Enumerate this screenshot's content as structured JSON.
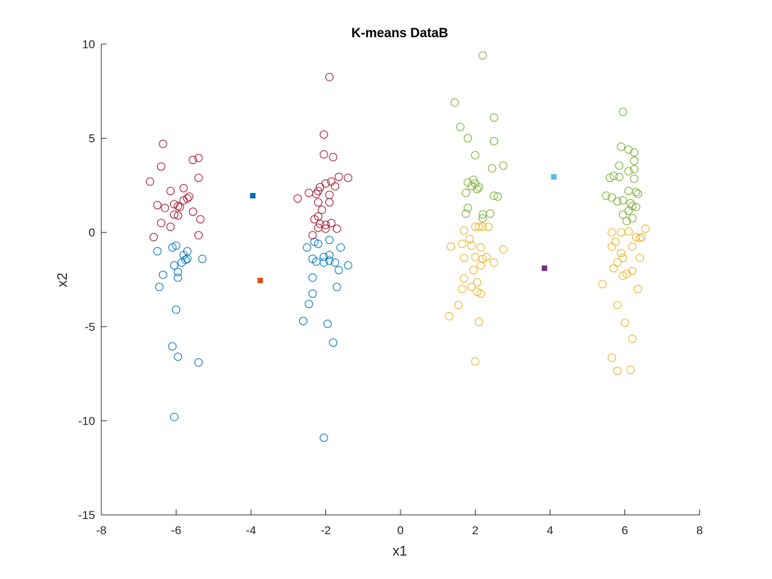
{
  "chart_data": {
    "type": "scatter",
    "title": "K-means DataB",
    "xlabel": "x1",
    "ylabel": "x2",
    "xlim": [
      -8,
      8
    ],
    "ylim": [
      -15,
      10
    ],
    "xticks": [
      -8,
      -6,
      -4,
      -2,
      0,
      2,
      4,
      6,
      8
    ],
    "yticks": [
      -15,
      -10,
      -5,
      0,
      5,
      10
    ],
    "grid": false,
    "box": false,
    "clusters": [
      {
        "color": "#0072bd",
        "marker": "open-circle",
        "points": [
          [
            -6.5,
            -1.0
          ],
          [
            -6.1,
            -0.8
          ],
          [
            -6.0,
            -0.7
          ],
          [
            -5.7,
            -1.0
          ],
          [
            -5.8,
            -1.2
          ],
          [
            -5.75,
            -1.45
          ],
          [
            -5.7,
            -1.4
          ],
          [
            -5.85,
            -1.6
          ],
          [
            -6.05,
            -1.75
          ],
          [
            -5.95,
            -2.1
          ],
          [
            -6.35,
            -2.25
          ],
          [
            -5.95,
            -2.4
          ],
          [
            -5.3,
            -1.4
          ],
          [
            -6.45,
            -2.9
          ],
          [
            -6.0,
            -4.1
          ],
          [
            -6.1,
            -6.05
          ],
          [
            -5.95,
            -6.6
          ],
          [
            -5.4,
            -6.9
          ],
          [
            -6.05,
            -9.8
          ],
          [
            -2.5,
            -0.8
          ],
          [
            -2.3,
            -0.5
          ],
          [
            -2.2,
            -0.6
          ],
          [
            -1.9,
            -0.4
          ],
          [
            -1.6,
            -0.8
          ],
          [
            -2.35,
            -1.4
          ],
          [
            -2.25,
            -1.55
          ],
          [
            -2.05,
            -1.3
          ],
          [
            -2.05,
            -1.6
          ],
          [
            -1.9,
            -1.2
          ],
          [
            -1.9,
            -1.5
          ],
          [
            -1.75,
            -1.6
          ],
          [
            -1.4,
            -1.75
          ],
          [
            -1.65,
            -2.0
          ],
          [
            -2.35,
            -2.4
          ],
          [
            -1.7,
            -2.9
          ],
          [
            -2.35,
            -3.25
          ],
          [
            -2.45,
            -3.8
          ],
          [
            -2.6,
            -4.7
          ],
          [
            -1.95,
            -4.85
          ],
          [
            -1.8,
            -5.85
          ],
          [
            -2.05,
            -10.9
          ]
        ]
      },
      {
        "color": "#a2142f",
        "marker": "open-circle",
        "points": [
          [
            -6.35,
            4.7
          ],
          [
            -6.4,
            3.5
          ],
          [
            -6.7,
            2.7
          ],
          [
            -6.15,
            2.2
          ],
          [
            -5.8,
            2.35
          ],
          [
            -5.65,
            1.9
          ],
          [
            -5.7,
            1.8
          ],
          [
            -6.5,
            1.45
          ],
          [
            -6.3,
            1.3
          ],
          [
            -6.05,
            1.5
          ],
          [
            -5.95,
            1.4
          ],
          [
            -5.9,
            1.35
          ],
          [
            -5.8,
            1.7
          ],
          [
            -6.05,
            0.95
          ],
          [
            -5.95,
            0.9
          ],
          [
            -5.55,
            1.1
          ],
          [
            -5.35,
            0.7
          ],
          [
            -6.4,
            0.5
          ],
          [
            -6.15,
            0.3
          ],
          [
            -6.6,
            -0.25
          ],
          [
            -5.55,
            3.85
          ],
          [
            -5.4,
            3.95
          ],
          [
            -5.4,
            2.9
          ],
          [
            -5.4,
            -0.15
          ],
          [
            -2.05,
            5.2
          ],
          [
            -2.05,
            4.15
          ],
          [
            -1.8,
            4.0
          ],
          [
            -1.9,
            8.25
          ],
          [
            -1.65,
            2.95
          ],
          [
            -1.4,
            2.9
          ],
          [
            -2.0,
            2.6
          ],
          [
            -1.85,
            2.7
          ],
          [
            -2.15,
            2.4
          ],
          [
            -2.2,
            2.2
          ],
          [
            -2.45,
            2.1
          ],
          [
            -2.25,
            2.05
          ],
          [
            -1.9,
            2.0
          ],
          [
            -1.75,
            2.45
          ],
          [
            -2.75,
            1.8
          ],
          [
            -2.2,
            1.6
          ],
          [
            -1.9,
            1.6
          ],
          [
            -2.1,
            1.2
          ],
          [
            -2.2,
            0.85
          ],
          [
            -2.3,
            0.7
          ],
          [
            -2.15,
            0.45
          ],
          [
            -2.0,
            0.4
          ],
          [
            -1.85,
            0.5
          ],
          [
            -2.2,
            0.25
          ],
          [
            -2.0,
            0.2
          ],
          [
            -1.7,
            0.2
          ],
          [
            -2.35,
            -0.15
          ]
        ]
      },
      {
        "color": "#77ac30",
        "marker": "open-circle",
        "points": [
          [
            1.45,
            6.9
          ],
          [
            1.6,
            5.6
          ],
          [
            1.8,
            5.0
          ],
          [
            2.2,
            9.4
          ],
          [
            2.5,
            6.1
          ],
          [
            2.5,
            4.85
          ],
          [
            2.0,
            4.1
          ],
          [
            2.45,
            3.4
          ],
          [
            2.75,
            3.55
          ],
          [
            1.95,
            2.8
          ],
          [
            1.8,
            2.65
          ],
          [
            2.0,
            2.6
          ],
          [
            1.9,
            2.45
          ],
          [
            2.1,
            2.4
          ],
          [
            2.05,
            2.3
          ],
          [
            1.75,
            2.1
          ],
          [
            2.5,
            1.95
          ],
          [
            2.6,
            1.9
          ],
          [
            1.8,
            1.3
          ],
          [
            1.75,
            1.0
          ],
          [
            2.2,
            0.95
          ],
          [
            2.2,
            0.75
          ],
          [
            2.4,
            1.0
          ],
          [
            5.95,
            6.4
          ],
          [
            5.9,
            4.55
          ],
          [
            6.1,
            4.4
          ],
          [
            6.25,
            4.25
          ],
          [
            6.25,
            3.8
          ],
          [
            6.25,
            3.35
          ],
          [
            6.1,
            3.25
          ],
          [
            5.85,
            3.55
          ],
          [
            5.7,
            3.0
          ],
          [
            5.6,
            2.9
          ],
          [
            5.85,
            2.95
          ],
          [
            6.1,
            2.2
          ],
          [
            6.3,
            2.15
          ],
          [
            6.35,
            2.05
          ],
          [
            6.25,
            2.85
          ],
          [
            5.5,
            1.95
          ],
          [
            5.65,
            1.85
          ],
          [
            5.8,
            1.65
          ],
          [
            5.95,
            1.7
          ],
          [
            6.15,
            1.55
          ],
          [
            6.2,
            1.4
          ],
          [
            6.3,
            1.35
          ],
          [
            6.1,
            1.15
          ],
          [
            5.95,
            0.95
          ],
          [
            6.2,
            0.75
          ],
          [
            6.05,
            0.6
          ]
        ]
      },
      {
        "color": "#edb120",
        "marker": "open-circle",
        "points": [
          [
            1.7,
            0.1
          ],
          [
            2.0,
            0.3
          ],
          [
            2.1,
            0.3
          ],
          [
            2.2,
            0.3
          ],
          [
            2.35,
            0.3
          ],
          [
            1.85,
            -0.35
          ],
          [
            1.65,
            -0.6
          ],
          [
            1.9,
            -0.7
          ],
          [
            1.35,
            -0.75
          ],
          [
            2.15,
            -0.8
          ],
          [
            2.0,
            -1.3
          ],
          [
            1.7,
            -1.35
          ],
          [
            2.2,
            -1.4
          ],
          [
            2.3,
            -1.3
          ],
          [
            2.75,
            -0.9
          ],
          [
            2.5,
            -1.6
          ],
          [
            1.95,
            -2.0
          ],
          [
            2.15,
            -1.75
          ],
          [
            1.7,
            -2.45
          ],
          [
            2.05,
            -2.65
          ],
          [
            1.9,
            -2.9
          ],
          [
            1.65,
            -3.0
          ],
          [
            2.05,
            -3.15
          ],
          [
            2.15,
            -3.25
          ],
          [
            1.55,
            -3.85
          ],
          [
            1.3,
            -4.45
          ],
          [
            2.1,
            -4.75
          ],
          [
            2.0,
            -6.85
          ],
          [
            5.65,
            0.0
          ],
          [
            5.9,
            0.0
          ],
          [
            6.1,
            0.05
          ],
          [
            6.55,
            0.2
          ],
          [
            6.3,
            -0.25
          ],
          [
            6.45,
            -0.25
          ],
          [
            6.4,
            -0.3
          ],
          [
            5.75,
            -0.5
          ],
          [
            5.65,
            -0.75
          ],
          [
            6.2,
            -0.75
          ],
          [
            5.9,
            -1.1
          ],
          [
            5.95,
            -1.35
          ],
          [
            6.4,
            -1.35
          ],
          [
            5.8,
            -1.6
          ],
          [
            5.7,
            -1.9
          ],
          [
            6.2,
            -2.05
          ],
          [
            6.05,
            -2.2
          ],
          [
            5.95,
            -2.3
          ],
          [
            5.4,
            -2.75
          ],
          [
            6.35,
            -3.0
          ],
          [
            5.8,
            -3.85
          ],
          [
            6.0,
            -4.8
          ],
          [
            6.2,
            -5.65
          ],
          [
            5.65,
            -6.65
          ],
          [
            5.8,
            -7.35
          ],
          [
            6.15,
            -7.3
          ]
        ]
      }
    ],
    "centroids": [
      {
        "x": -3.95,
        "y": 1.95,
        "color": "#0072bd"
      },
      {
        "x": -3.75,
        "y": -2.55,
        "color": "#d95319"
      },
      {
        "x": 4.1,
        "y": 2.95,
        "color": "#4dbeee"
      },
      {
        "x": 3.85,
        "y": -1.9,
        "color": "#7e2f8e"
      }
    ]
  }
}
